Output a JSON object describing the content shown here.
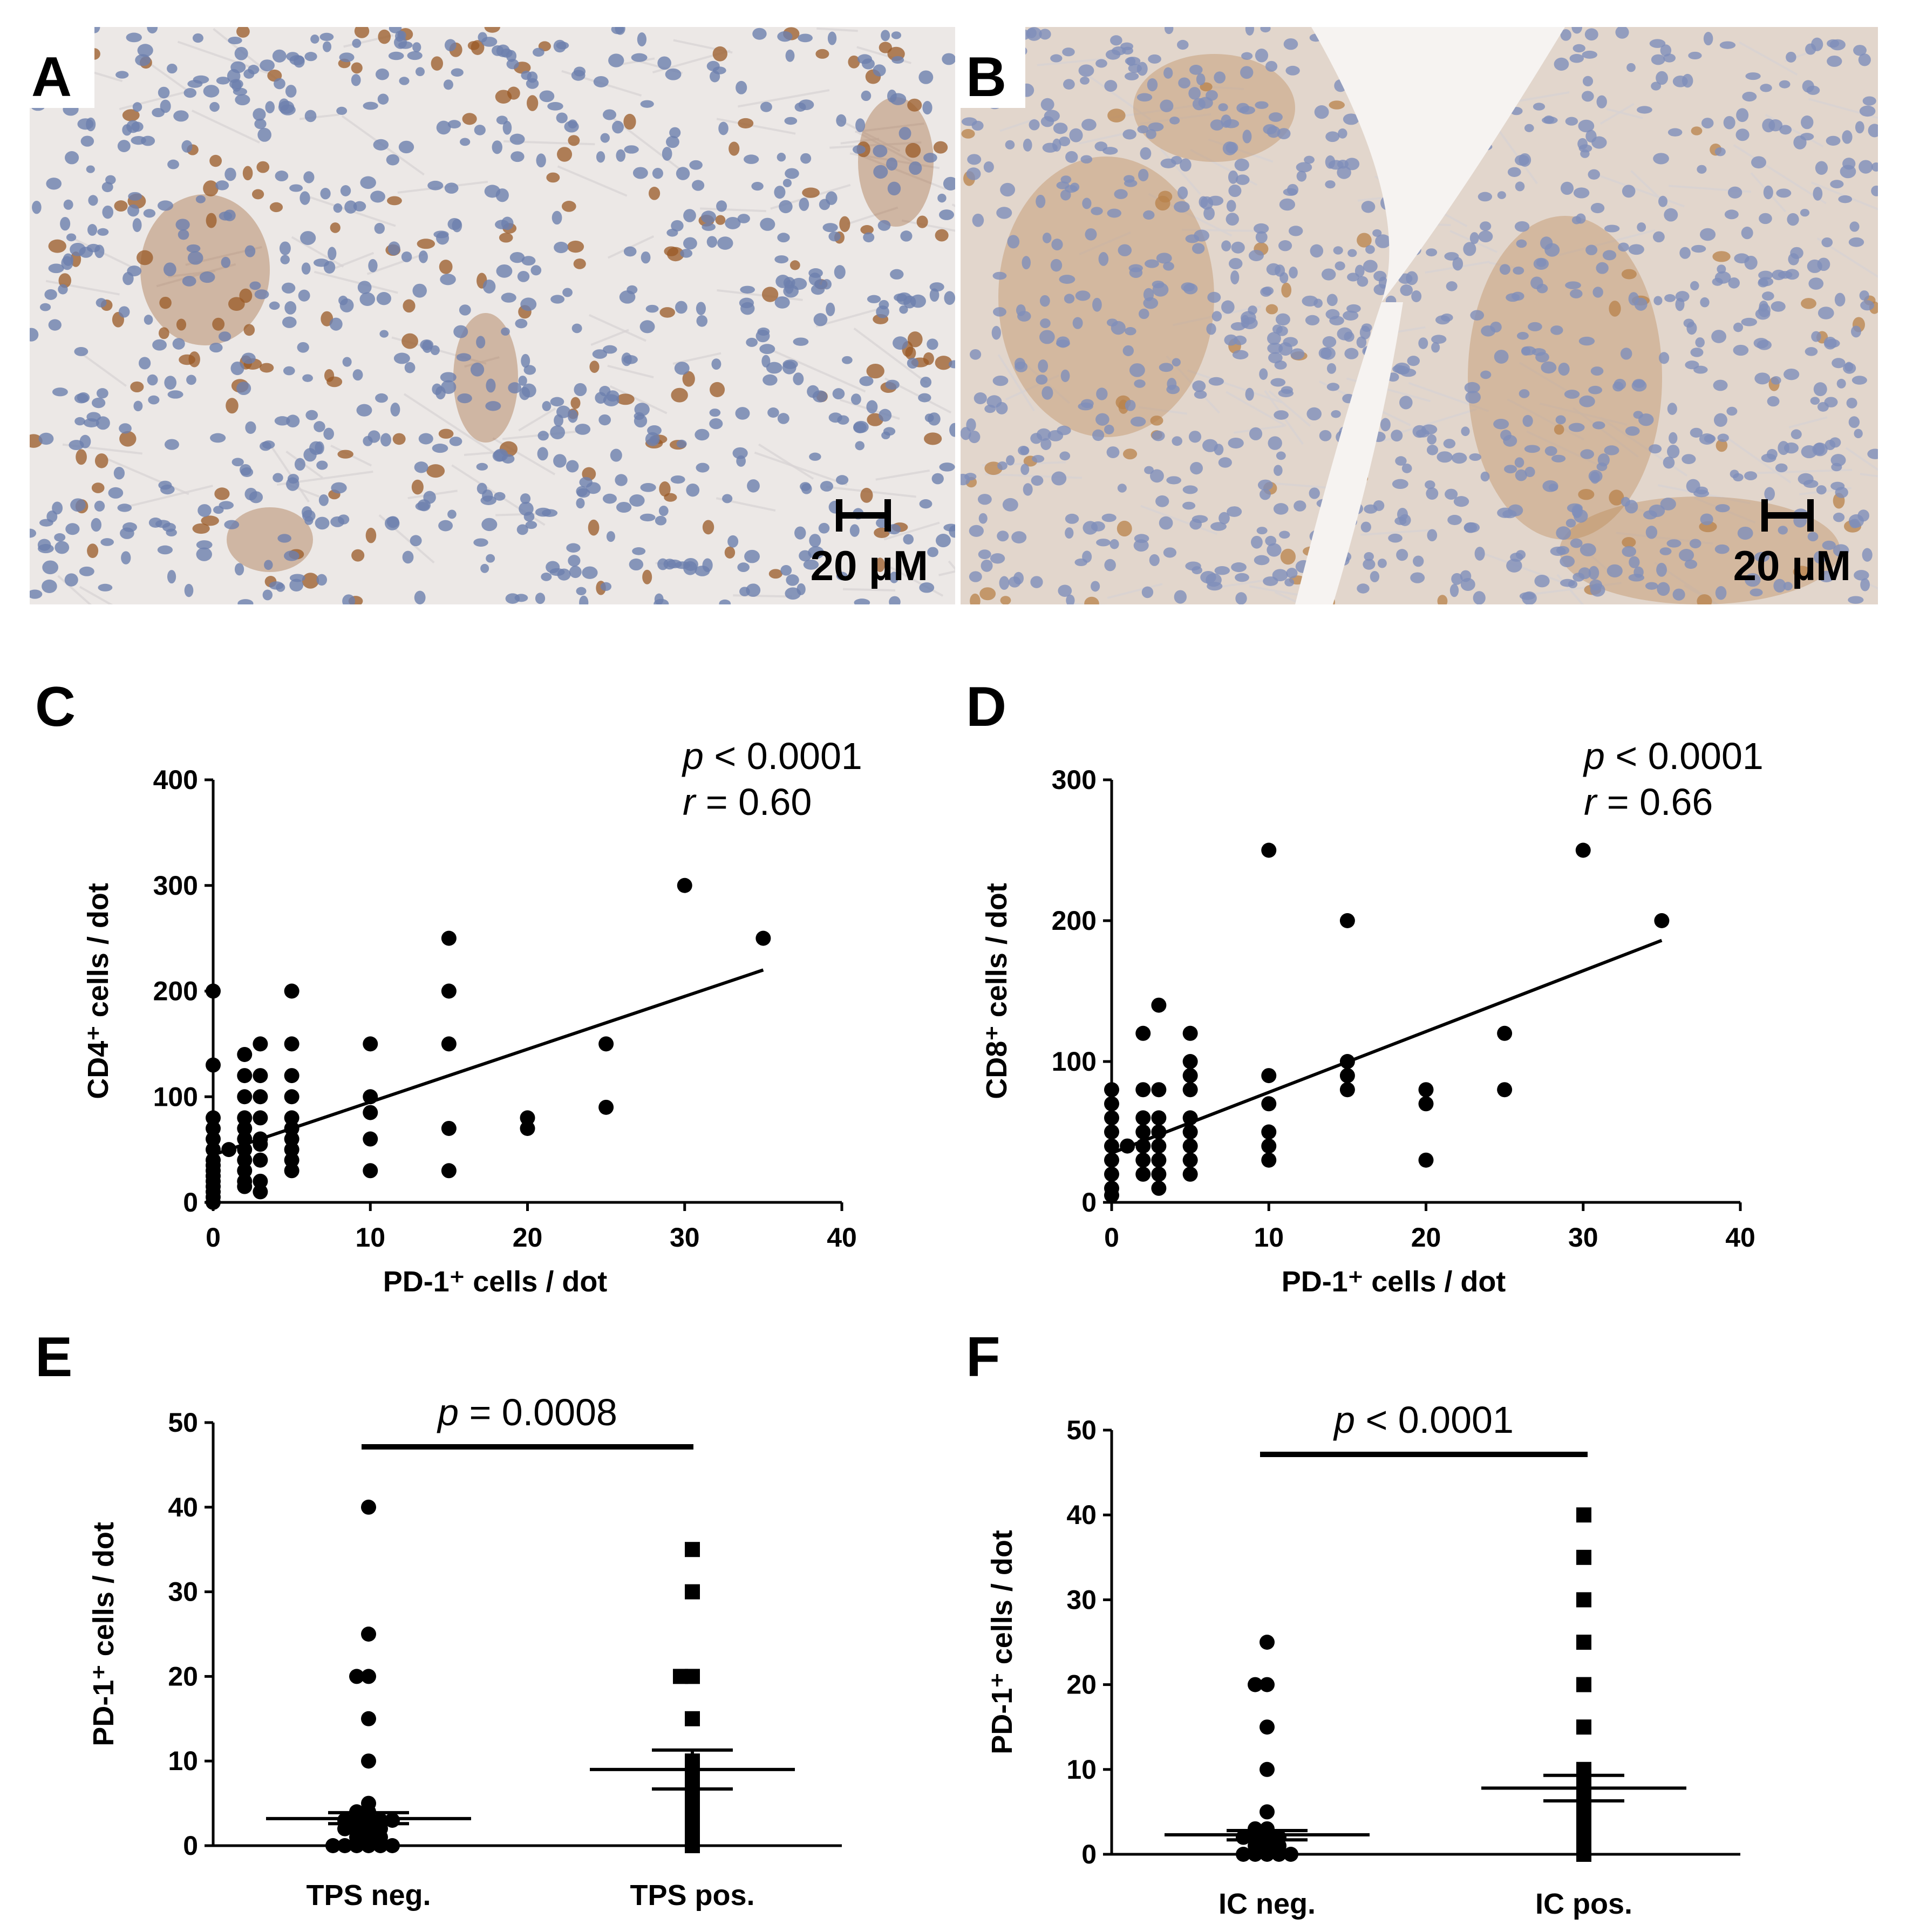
{
  "micrographs": [
    {
      "panel": "A",
      "scale_label": "20 µM",
      "stain_color": "#9a5a25",
      "bg_color": "#ece8e6",
      "nucleus_color": "#6d7fae"
    },
    {
      "panel": "B",
      "scale_label": "20 µM",
      "stain_color": "#b8824a",
      "bg_color": "#e2d6cc",
      "nucleus_color": "#7f8fba"
    }
  ],
  "chart_data": [
    {
      "panel": "C",
      "type": "scatter",
      "xlabel": "PD-1⁺ cells / dot",
      "ylabel": "CD4⁺ cells / dot",
      "xlim": [
        0,
        40
      ],
      "ylim": [
        0,
        400
      ],
      "xticks": [
        0,
        10,
        20,
        30,
        40
      ],
      "yticks": [
        0,
        100,
        200,
        300,
        400
      ],
      "stats": {
        "p": "< 0.0001",
        "r": "= 0.60"
      },
      "fit_line": {
        "x": [
          0,
          35
        ],
        "y": [
          45,
          220
        ]
      },
      "points": [
        [
          0,
          0
        ],
        [
          0,
          5
        ],
        [
          0,
          10
        ],
        [
          0,
          15
        ],
        [
          0,
          20
        ],
        [
          0,
          25
        ],
        [
          0,
          30
        ],
        [
          0,
          35
        ],
        [
          0,
          40
        ],
        [
          0,
          50
        ],
        [
          0,
          60
        ],
        [
          0,
          70
        ],
        [
          0,
          80
        ],
        [
          0,
          130
        ],
        [
          0,
          200
        ],
        [
          1,
          50
        ],
        [
          2,
          15
        ],
        [
          2,
          20
        ],
        [
          2,
          30
        ],
        [
          2,
          40
        ],
        [
          2,
          50
        ],
        [
          2,
          60
        ],
        [
          2,
          70
        ],
        [
          2,
          80
        ],
        [
          2,
          100
        ],
        [
          2,
          120
        ],
        [
          2,
          140
        ],
        [
          3,
          10
        ],
        [
          3,
          20
        ],
        [
          3,
          40
        ],
        [
          3,
          55
        ],
        [
          3,
          60
        ],
        [
          3,
          80
        ],
        [
          3,
          100
        ],
        [
          3,
          120
        ],
        [
          3,
          150
        ],
        [
          5,
          30
        ],
        [
          5,
          40
        ],
        [
          5,
          50
        ],
        [
          5,
          60
        ],
        [
          5,
          70
        ],
        [
          5,
          80
        ],
        [
          5,
          100
        ],
        [
          5,
          120
        ],
        [
          5,
          150
        ],
        [
          5,
          200
        ],
        [
          10,
          30
        ],
        [
          10,
          60
        ],
        [
          10,
          85
        ],
        [
          10,
          100
        ],
        [
          10,
          150
        ],
        [
          15,
          30
        ],
        [
          15,
          70
        ],
        [
          15,
          150
        ],
        [
          15,
          200
        ],
        [
          15,
          250
        ],
        [
          20,
          70
        ],
        [
          20,
          80
        ],
        [
          25,
          90
        ],
        [
          25,
          150
        ],
        [
          30,
          300
        ],
        [
          35,
          250
        ]
      ]
    },
    {
      "panel": "D",
      "type": "scatter",
      "xlabel": "PD-1⁺ cells / dot",
      "ylabel": "CD8⁺ cells / dot",
      "xlim": [
        0,
        40
      ],
      "ylim": [
        0,
        300
      ],
      "xticks": [
        0,
        10,
        20,
        30,
        40
      ],
      "yticks": [
        0,
        100,
        200,
        300
      ],
      "stats": {
        "p": "< 0.0001",
        "r": "= 0.66"
      },
      "fit_line": {
        "x": [
          0,
          35
        ],
        "y": [
          35,
          186
        ]
      },
      "points": [
        [
          0,
          5
        ],
        [
          0,
          10
        ],
        [
          0,
          20
        ],
        [
          0,
          30
        ],
        [
          0,
          40
        ],
        [
          0,
          50
        ],
        [
          0,
          60
        ],
        [
          0,
          70
        ],
        [
          0,
          80
        ],
        [
          1,
          40
        ],
        [
          2,
          20
        ],
        [
          2,
          30
        ],
        [
          2,
          40
        ],
        [
          2,
          50
        ],
        [
          2,
          60
        ],
        [
          2,
          80
        ],
        [
          2,
          120
        ],
        [
          3,
          10
        ],
        [
          3,
          20
        ],
        [
          3,
          30
        ],
        [
          3,
          40
        ],
        [
          3,
          50
        ],
        [
          3,
          60
        ],
        [
          3,
          80
        ],
        [
          3,
          140
        ],
        [
          5,
          20
        ],
        [
          5,
          30
        ],
        [
          5,
          40
        ],
        [
          5,
          50
        ],
        [
          5,
          60
        ],
        [
          5,
          80
        ],
        [
          5,
          90
        ],
        [
          5,
          100
        ],
        [
          5,
          120
        ],
        [
          10,
          30
        ],
        [
          10,
          40
        ],
        [
          10,
          50
        ],
        [
          10,
          70
        ],
        [
          10,
          90
        ],
        [
          10,
          250
        ],
        [
          15,
          80
        ],
        [
          15,
          90
        ],
        [
          15,
          100
        ],
        [
          15,
          200
        ],
        [
          20,
          30
        ],
        [
          20,
          70
        ],
        [
          20,
          80
        ],
        [
          25,
          80
        ],
        [
          25,
          120
        ],
        [
          30,
          250
        ],
        [
          35,
          200
        ]
      ]
    },
    {
      "panel": "E",
      "type": "scatter",
      "categories": [
        "TPS neg.",
        "TPS pos."
      ],
      "ylabel": "PD-1⁺ cells / dot",
      "ylim": [
        0,
        50
      ],
      "yticks": [
        0,
        10,
        20,
        30,
        40,
        50
      ],
      "stats": {
        "p": "= 0.0008"
      },
      "series": [
        {
          "marker": "circle",
          "mean": 3.2,
          "sem": [
            2.6,
            3.9
          ],
          "values": [
            0,
            0,
            0,
            0,
            0,
            0,
            1,
            1,
            1,
            2,
            2,
            2,
            2,
            3,
            3,
            3,
            3,
            3,
            4,
            4,
            5,
            10,
            15,
            20,
            20,
            25,
            40
          ]
        },
        {
          "marker": "square",
          "mean": 9.0,
          "sem": [
            6.7,
            11.3
          ],
          "values": [
            0,
            1,
            2,
            3,
            4,
            5,
            6,
            7,
            8,
            9,
            10,
            15,
            20,
            20,
            30,
            35
          ]
        }
      ]
    },
    {
      "panel": "F",
      "type": "scatter",
      "categories": [
        "IC neg.",
        "IC pos."
      ],
      "ylabel": "PD-1⁺ cells / dot",
      "ylim": [
        0,
        50
      ],
      "yticks": [
        0,
        10,
        20,
        30,
        40,
        50
      ],
      "stats": {
        "p": "< 0.0001"
      },
      "series": [
        {
          "marker": "circle",
          "mean": 2.3,
          "sem": [
            1.7,
            2.8
          ],
          "values": [
            0,
            0,
            0,
            0,
            0,
            1,
            1,
            1,
            2,
            2,
            2,
            2,
            3,
            3,
            5,
            10,
            15,
            20,
            20,
            25
          ]
        },
        {
          "marker": "square",
          "mean": 7.8,
          "sem": [
            6.3,
            9.3
          ],
          "values": [
            0,
            1,
            2,
            3,
            4,
            5,
            6,
            7,
            8,
            9,
            10,
            15,
            20,
            25,
            30,
            35,
            40
          ]
        }
      ]
    }
  ]
}
